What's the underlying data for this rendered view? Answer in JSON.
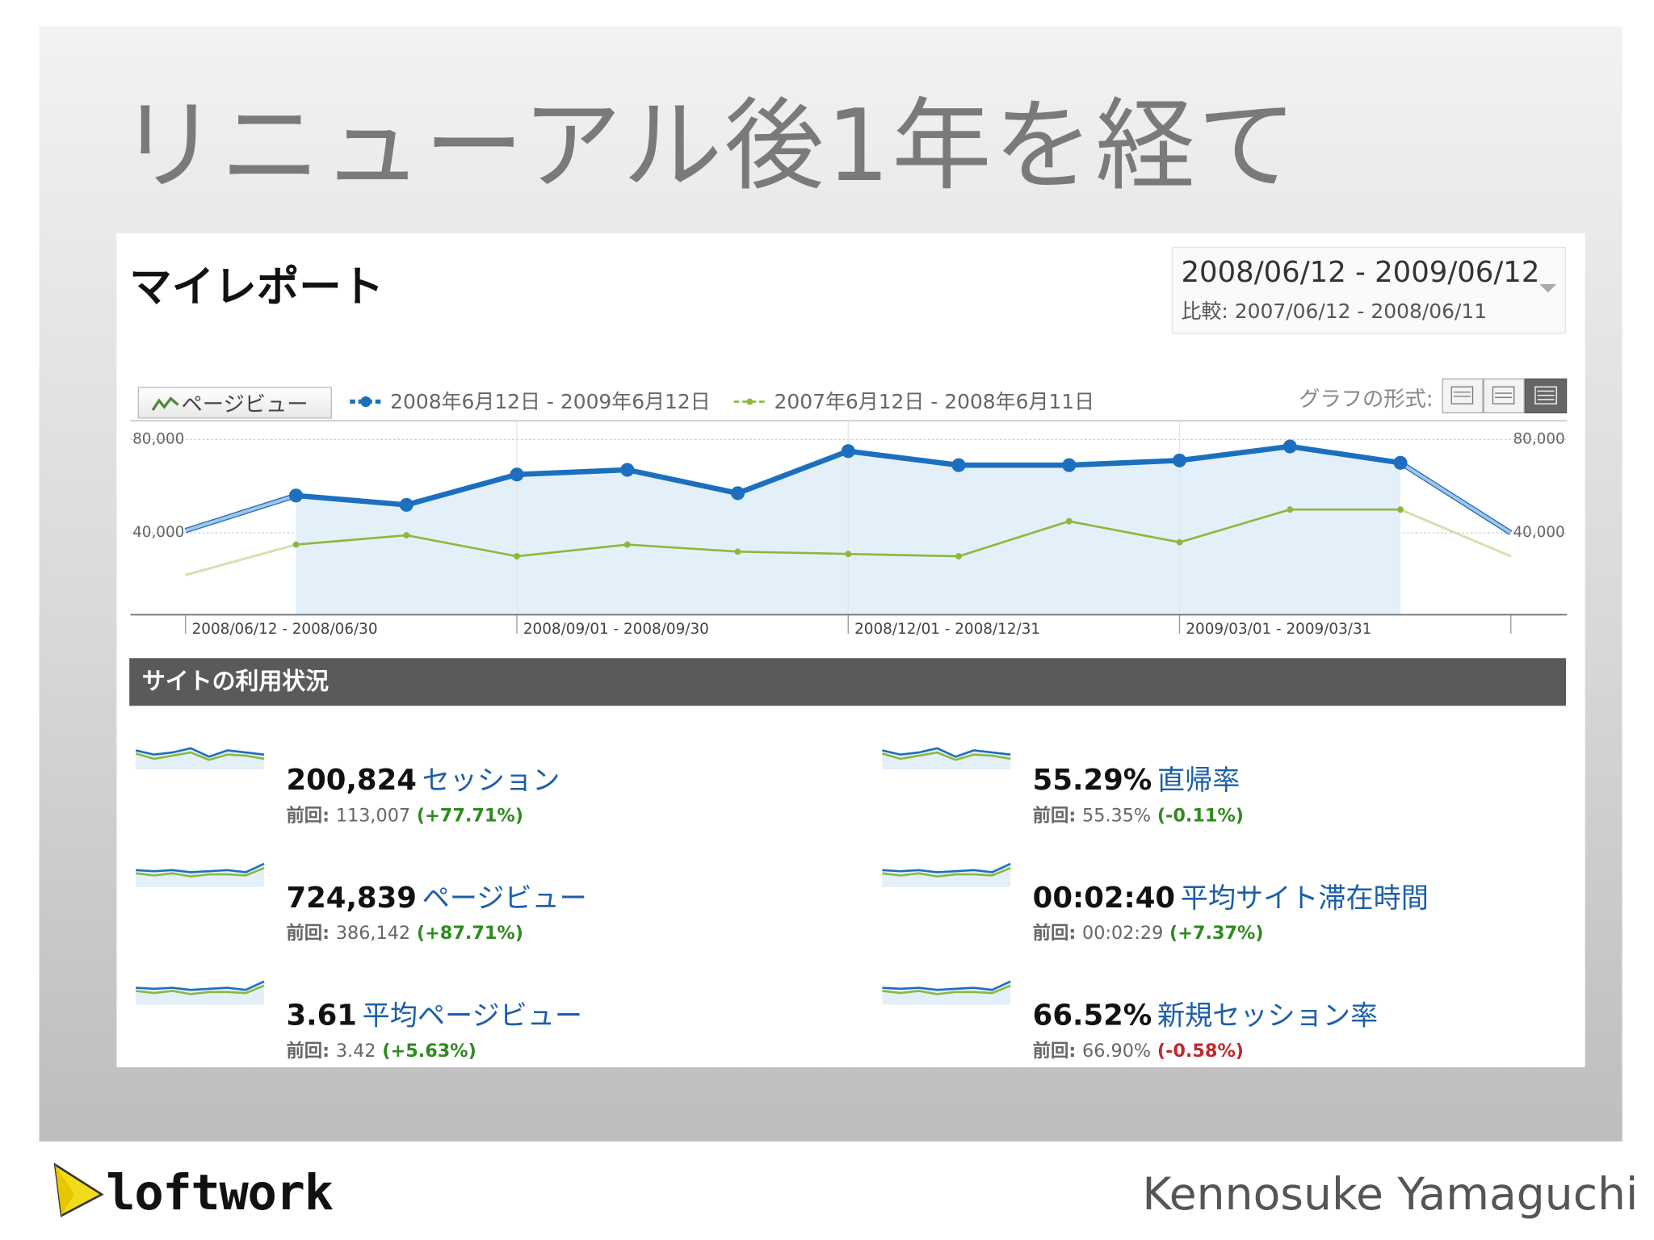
{
  "slide": {
    "title": "リニューアル後1年を経て",
    "logo_text": "loftwork",
    "author": "Kennosuke Yamaguchi"
  },
  "report": {
    "title": "マイレポート",
    "date_range": "2008/06/12 - 2009/06/12",
    "compare_label": "比較:",
    "compare_range": "2007/06/12 - 2008/06/11",
    "metric_selector": "ページビュー",
    "graph_format_label": "グラフの形式:",
    "section_title": "サイトの利用状況",
    "metrics": [
      {
        "value": "200,824",
        "label": "セッション",
        "prev_label": "前回:",
        "prev": "113,007",
        "change": "(+77.71%)",
        "change_color": "#2e8b1e"
      },
      {
        "value": "55.29%",
        "label": "直帰率",
        "prev_label": "前回:",
        "prev": "55.35%",
        "change": "(-0.11%)",
        "change_color": "#2e8b1e"
      },
      {
        "value": "724,839",
        "label": "ページビュー",
        "prev_label": "前回:",
        "prev": "386,142",
        "change": "(+87.71%)",
        "change_color": "#2e8b1e"
      },
      {
        "value": "00:02:40",
        "label": "平均サイト滞在時間",
        "prev_label": "前回:",
        "prev": "00:02:29",
        "change": "(+7.37%)",
        "change_color": "#2e8b1e"
      },
      {
        "value": "3.61",
        "label": "平均ページビュー",
        "prev_label": "前回:",
        "prev": "3.42",
        "change": "(+5.63%)",
        "change_color": "#2e8b1e"
      },
      {
        "value": "66.52%",
        "label": "新規セッション率",
        "prev_label": "前回:",
        "prev": "66.90%",
        "change": "(-0.58%)",
        "change_color": "#c0282d"
      }
    ]
  },
  "chart_data": {
    "type": "line",
    "categories": [
      "2008/06/12 - 2008/06/30",
      null,
      null,
      "2008/09/01 - 2008/09/30",
      null,
      null,
      "2008/12/01 - 2008/12/31",
      null,
      null,
      "2009/03/01 - 2009/03/31",
      null,
      null,
      null
    ],
    "series": [
      {
        "name": "2008年6月12日 - 2009年6月12日",
        "color": "#1c6fbf",
        "values": [
          41000,
          56000,
          52000,
          65000,
          67000,
          57000,
          75000,
          69000,
          69000,
          71000,
          77000,
          70000,
          40000
        ]
      },
      {
        "name": "2007年6月12日 - 2008年6月11日",
        "color": "#8cb83c",
        "values": [
          22000,
          35000,
          39000,
          30000,
          35000,
          32000,
          31000,
          30000,
          45000,
          36000,
          50000,
          50000,
          30000
        ]
      }
    ],
    "ylim": [
      5000,
      88000
    ],
    "yticks": [
      {
        "value": 40000,
        "label": "40,000"
      },
      {
        "value": 80000,
        "label": "80,000"
      }
    ],
    "grid": true
  }
}
